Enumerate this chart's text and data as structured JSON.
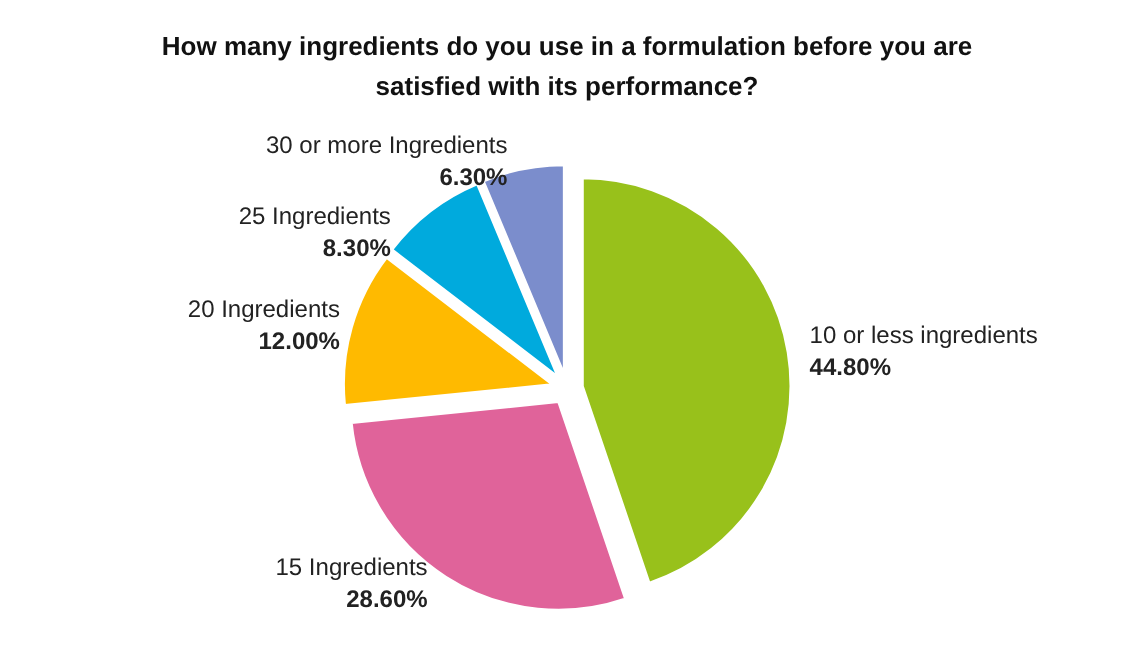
{
  "chart_data": {
    "type": "pie",
    "title": "How many ingredients do you use in a formulation before you are\nsatisfied with its performance?",
    "categories": [
      "10 or less ingredients",
      "15 Ingredients",
      "20 Ingredients",
      "25 Ingredients",
      "30 or more Ingredients"
    ],
    "values": [
      44.8,
      28.6,
      12.0,
      8.3,
      6.3
    ],
    "value_labels": [
      "44.80%",
      "28.60%",
      "12.00%",
      "8.30%",
      "6.30%"
    ],
    "colors": [
      "#98c11b",
      "#e0639a",
      "#ffba00",
      "#00aadd",
      "#7b8dcc"
    ],
    "legend": false
  }
}
